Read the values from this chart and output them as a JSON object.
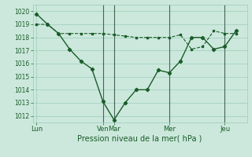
{
  "xlabel": "Pression niveau de la mer( hPa )",
  "ylim": [
    1011.5,
    1020.5
  ],
  "yticks": [
    1012,
    1013,
    1014,
    1015,
    1016,
    1017,
    1018,
    1019,
    1020
  ],
  "background_color": "#cce8dc",
  "grid_color": "#99ccb8",
  "line_color": "#1a5c2a",
  "x_day_labels": [
    "Lun",
    "Ven",
    "Mar",
    "Mer",
    "Jeu"
  ],
  "x_day_positions": [
    0,
    36,
    42,
    72,
    102
  ],
  "x_vline_positions": [
    36,
    42,
    72,
    102
  ],
  "xlim": [
    -2,
    114
  ],
  "line1_x": [
    0,
    6,
    12,
    18,
    24,
    30,
    36,
    42,
    48,
    54,
    60,
    66,
    72,
    78,
    84,
    90,
    96,
    102,
    108
  ],
  "line1_y": [
    1019.8,
    1019.0,
    1018.3,
    1017.1,
    1016.2,
    1015.6,
    1013.1,
    1011.7,
    1013.0,
    1014.0,
    1014.0,
    1015.5,
    1015.3,
    1016.2,
    1018.0,
    1018.0,
    1017.1,
    1017.3,
    1018.5
  ],
  "line2_x": [
    0,
    6,
    12,
    18,
    24,
    30,
    36,
    42,
    48,
    54,
    60,
    66,
    72,
    78,
    84,
    90,
    96,
    102,
    108
  ],
  "line2_y": [
    1019.0,
    1019.0,
    1018.3,
    1018.3,
    1018.3,
    1018.3,
    1018.3,
    1018.2,
    1018.1,
    1018.0,
    1018.0,
    1018.0,
    1018.0,
    1018.2,
    1017.1,
    1017.3,
    1018.5,
    1018.3,
    1018.3
  ]
}
